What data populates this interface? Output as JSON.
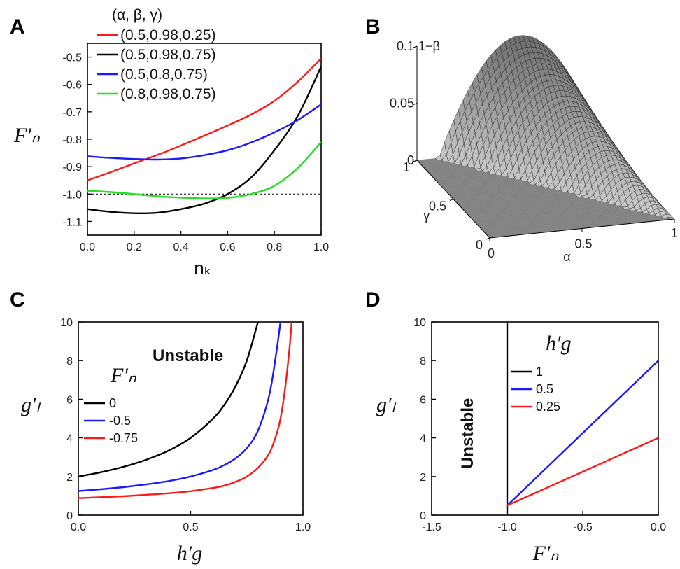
{
  "figure": {
    "panel_labels": [
      "A",
      "B",
      "C",
      "D"
    ]
  },
  "chart_data": [
    {
      "panel": "A",
      "type": "line",
      "ylabel": "F′ₙ",
      "xlabel": "nₖ",
      "xlim": [
        0.0,
        1.0
      ],
      "ylim": [
        -1.15,
        -0.45
      ],
      "xticks": [
        "0.0",
        "0.2",
        "0.4",
        "0.6",
        "0.8",
        "1.0"
      ],
      "yticks": [
        "-0.5",
        "-0.6",
        "-0.7",
        "-0.8",
        "-0.9",
        "-1.0",
        "-1.1"
      ],
      "legend_title": "(α, β, γ)",
      "legend_position": "top-left",
      "reference_line": {
        "y": -1.0,
        "style": "dotted"
      },
      "x": [
        0.0,
        0.1,
        0.2,
        0.3,
        0.4,
        0.5,
        0.6,
        0.7,
        0.8,
        0.9,
        1.0
      ],
      "series": [
        {
          "name": "(0.5,0.98,0.25)",
          "color": "#ff1a1a",
          "values": [
            -0.95,
            -0.92,
            -0.888,
            -0.857,
            -0.823,
            -0.787,
            -0.75,
            -0.71,
            -0.66,
            -0.59,
            -0.505
          ]
        },
        {
          "name": "(0.5,0.98,0.75)",
          "color": "#000000",
          "values": [
            -1.055,
            -1.065,
            -1.07,
            -1.068,
            -1.055,
            -1.035,
            -1.0,
            -0.94,
            -0.84,
            -0.715,
            -0.535
          ]
        },
        {
          "name": "(0.5,0.8,0.75)",
          "color": "#1a1aff",
          "values": [
            -0.862,
            -0.868,
            -0.872,
            -0.874,
            -0.87,
            -0.858,
            -0.84,
            -0.812,
            -0.775,
            -0.73,
            -0.673
          ]
        },
        {
          "name": "(0.8,0.98,0.75)",
          "color": "#22e022",
          "values": [
            -0.988,
            -0.993,
            -1.0,
            -1.008,
            -1.013,
            -1.016,
            -1.014,
            -1.0,
            -0.97,
            -0.905,
            -0.81
          ]
        }
      ]
    },
    {
      "panel": "B",
      "type": "surface",
      "zlabel": "1−β",
      "xlabel": "α",
      "ylabel": "γ",
      "zticks": [
        "0",
        "0.05",
        "0.1"
      ],
      "xticks": [
        "0",
        "0.5",
        "1"
      ],
      "yticks": [
        "0",
        "0.5",
        "1"
      ],
      "zlim": [
        0,
        0.1
      ],
      "peak": {
        "alpha": 0.5,
        "gamma": 1.0,
        "value": 0.1
      }
    },
    {
      "panel": "C",
      "type": "line",
      "ylabel": "g′ₗ",
      "xlabel": "h′g",
      "xlim": [
        0.0,
        1.0
      ],
      "ylim": [
        0,
        10
      ],
      "xticks": [
        "0.0",
        "0.5",
        "1.0"
      ],
      "yticks": [
        "0",
        "2",
        "4",
        "6",
        "8",
        "10"
      ],
      "annotation": "Unstable",
      "legend_title": "F′ₙ",
      "legend_position": "center-left",
      "x": [
        0.0,
        0.1,
        0.2,
        0.3,
        0.4,
        0.5,
        0.6,
        0.65,
        0.7,
        0.75,
        0.8,
        0.85,
        0.88,
        0.9,
        0.92,
        0.94,
        0.95
      ],
      "series": [
        {
          "name": "0",
          "color": "#000000",
          "values": [
            2.0,
            2.22,
            2.5,
            2.86,
            3.33,
            4.0,
            5.0,
            5.71,
            6.67,
            8.0,
            10.0,
            null,
            null,
            null,
            null,
            null,
            null
          ]
        },
        {
          "name": "-0.5",
          "color": "#1a1aff",
          "values": [
            1.25,
            1.34,
            1.45,
            1.59,
            1.76,
            2.0,
            2.34,
            2.59,
            2.94,
            3.47,
            4.38,
            6.2,
            8.3,
            10.0,
            null,
            null,
            null
          ]
        },
        {
          "name": "-0.75",
          "color": "#ff1a1a",
          "values": [
            0.88,
            0.93,
            0.98,
            1.05,
            1.13,
            1.24,
            1.41,
            1.53,
            1.72,
            2.0,
            2.45,
            3.2,
            4.1,
            5.0,
            6.5,
            8.6,
            10.0
          ]
        }
      ]
    },
    {
      "panel": "D",
      "type": "line",
      "ylabel": "g′ₗ",
      "xlabel": "F′ₙ",
      "xlim": [
        -1.5,
        0.0
      ],
      "ylim": [
        0,
        10
      ],
      "xticks": [
        "-1.5",
        "-1.0",
        "-0.5",
        "0.0"
      ],
      "yticks": [
        "0",
        "2",
        "4",
        "6",
        "8",
        "10"
      ],
      "annotation": "Unstable",
      "legend_title": "h′g",
      "legend_position": "top-center",
      "series": [
        {
          "name": "1",
          "color": "#000000",
          "x": [
            -1.0,
            -1.0
          ],
          "values": [
            0,
            10
          ]
        },
        {
          "name": "0.5",
          "color": "#1a1aff",
          "x": [
            -1.0,
            0.0
          ],
          "values": [
            0.5,
            8.0
          ]
        },
        {
          "name": "0.25",
          "color": "#ff1a1a",
          "x": [
            -1.0,
            0.0
          ],
          "values": [
            0.5,
            4.0
          ]
        }
      ]
    }
  ]
}
